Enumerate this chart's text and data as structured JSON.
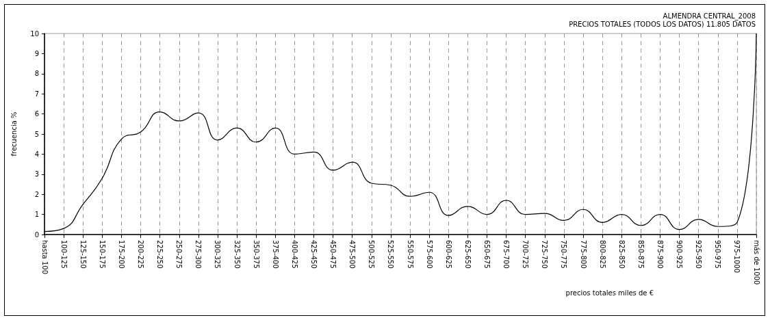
{
  "chart_data": {
    "type": "line",
    "title": "ALMENDRA CENTRAL_2008",
    "subtitle": "PRECIOS TOTALES (TODOS LOS DATOS) 11.805 DATOS",
    "xlabel": "precios totales miles de €",
    "ylabel": "frecuencia %",
    "categories": [
      "hasta 100",
      "100-125",
      "125-150",
      "150-175",
      "175-200",
      "200-225",
      "225-250",
      "250-275",
      "275-300",
      "300-325",
      "325-350",
      "350-375",
      "375-400",
      "400-425",
      "425-450",
      "450-475",
      "475-500",
      "500-525",
      "525-550",
      "550-575",
      "575-600",
      "600-625",
      "625-650",
      "650-675",
      "675-700",
      "700-725",
      "725-750",
      "750-775",
      "775-800",
      "800-825",
      "825-850",
      "850-875",
      "875-900",
      "900-925",
      "925-950",
      "950-975",
      "975-1000",
      "más de 1000"
    ],
    "series": [
      {
        "color": "#000000",
        "values": [
          0.15,
          0.3,
          1.5,
          2.8,
          4.75,
          5.1,
          6.1,
          5.65,
          6.05,
          4.7,
          5.3,
          4.6,
          5.3,
          4.0,
          4.1,
          3.2,
          3.6,
          2.55,
          2.45,
          1.9,
          2.1,
          0.95,
          1.4,
          1.0,
          1.7,
          1.0,
          1.05,
          0.7,
          1.25,
          0.6,
          1.0,
          0.45,
          1.0,
          0.25,
          0.75,
          0.4,
          0.6,
          10
        ]
      }
    ],
    "ylim": [
      0,
      10
    ],
    "yticks": [
      0,
      1,
      2,
      3,
      4,
      5,
      6,
      7,
      8,
      9,
      10
    ],
    "grid": "x",
    "marker": "none",
    "line_style": "solid"
  }
}
